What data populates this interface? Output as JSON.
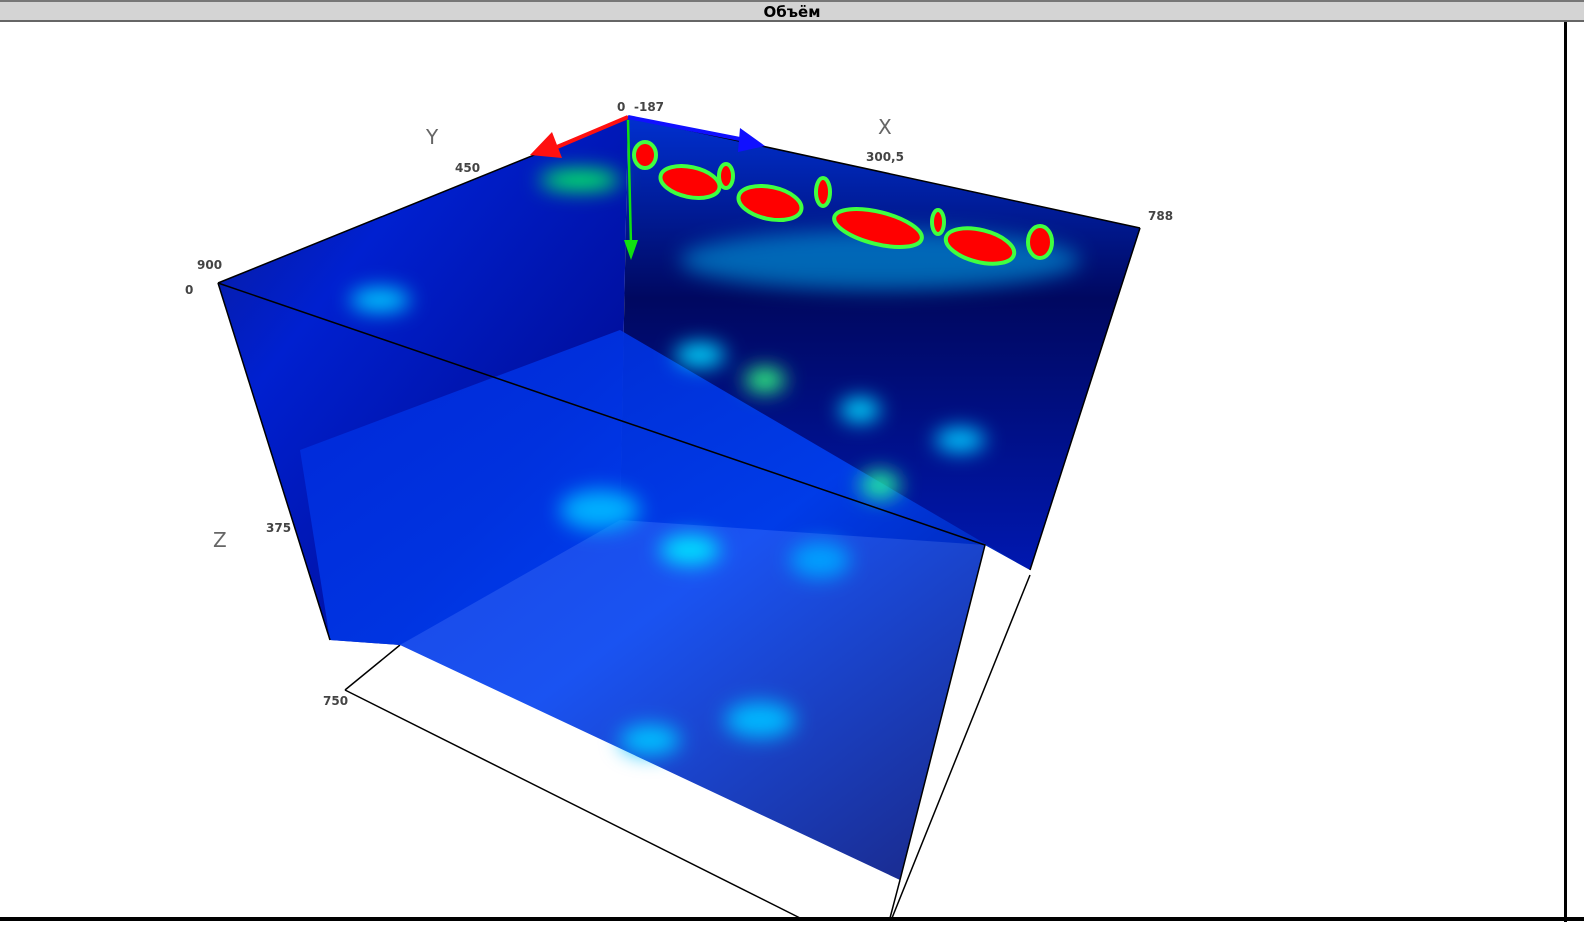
{
  "window": {
    "title": "Объём"
  },
  "axes": {
    "x": {
      "name": "X",
      "ticks": [
        "-187",
        "300,5",
        "788"
      ],
      "arrow_color": "#1010ff"
    },
    "y": {
      "name": "Y",
      "ticks": [
        "0",
        "450",
        "900"
      ],
      "arrow_color": "#ff1010"
    },
    "z": {
      "name": "Z",
      "ticks": [
        "0",
        "375",
        "750"
      ],
      "arrow_color": "#10e010"
    }
  },
  "colormap": [
    "#000000",
    "#0000ff",
    "#00c8ff",
    "#00ff40",
    "#ff0000"
  ]
}
